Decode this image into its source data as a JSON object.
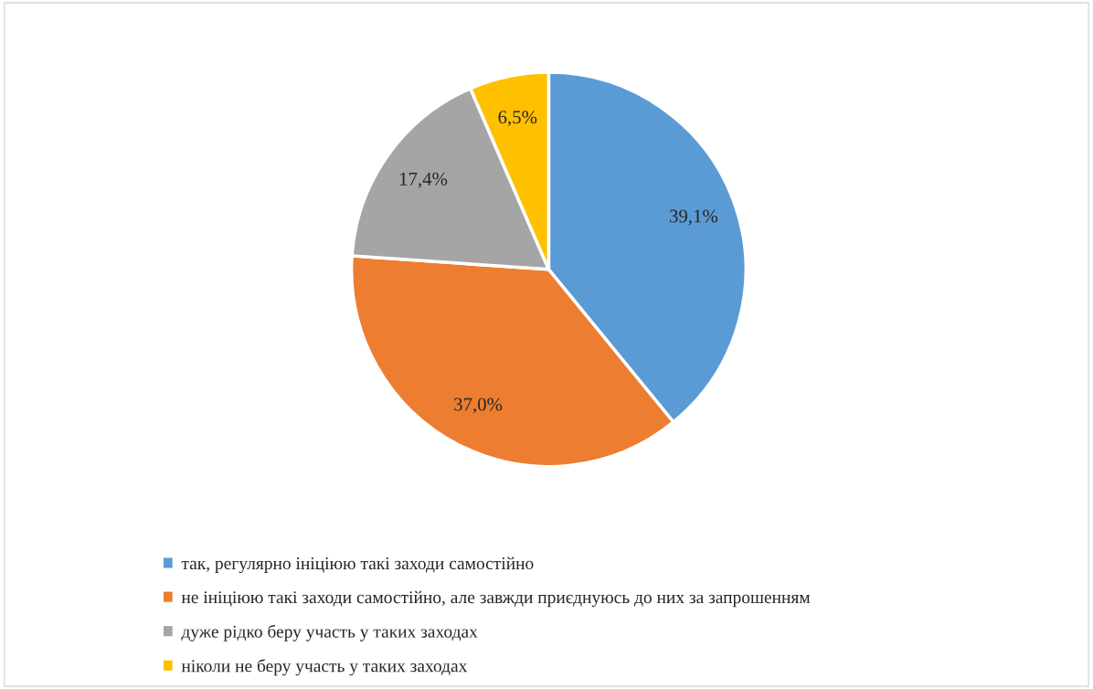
{
  "chart_data": {
    "type": "pie",
    "categories": [
      "так, регулярно ініціюю такі заходи самостійно",
      "не ініціюю такі заходи самостійно, але завжди приєднуюсь до них за запрошенням",
      "дуже рідко беру участь у таких заходах",
      "ніколи не беру участь у таких заходах"
    ],
    "values": [
      39.1,
      37.0,
      17.4,
      6.5
    ],
    "colors": [
      "#5b9bd5",
      "#ed7d31",
      "#a5a5a5",
      "#ffc000"
    ],
    "value_labels": [
      "39,1%",
      "37,0%",
      "17,4%",
      "6,5%"
    ],
    "legend": "bottom"
  }
}
